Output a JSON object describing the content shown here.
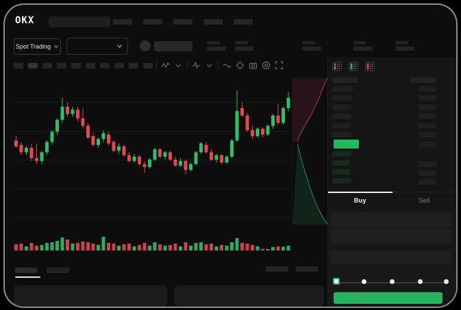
{
  "app": {
    "frame_border_color": "#8f8f8f",
    "background": "#0d0d0d"
  },
  "header": {
    "logo_text": "OKX",
    "nav_item_count": 5
  },
  "ticker": {
    "market_selector_label": "Spot Trading",
    "stat_block_lefts": [
      295,
      336,
      434,
      509,
      570
    ]
  },
  "chart_toolbar": {
    "timeframe_count": 10,
    "active_timeframe_index": 1,
    "icons": [
      "candle-style-icon",
      "chevron-down-icon",
      "separator",
      "indicators-icon",
      "chevron-down-icon",
      "separator",
      "line-tool-icon",
      "drawing-tools-icon",
      "camera-icon",
      "settings-circle-icon",
      "fullscreen-icon"
    ]
  },
  "orderbook": {
    "view_icons": [
      "orderbook-combined-icon",
      "orderbook-bids-icon",
      "orderbook-asks-icon"
    ],
    "ask_row_tops": [
      42,
      55,
      69,
      82,
      96,
      109
    ],
    "ask_left_widths": [
      30,
      28,
      28,
      28,
      26,
      28
    ],
    "bid_row_tops": [
      137,
      150,
      163,
      176
    ],
    "bid_left_widths": [
      28,
      26,
      26,
      28
    ],
    "right_row_tops": [
      42,
      55,
      69,
      82,
      96,
      109,
      123,
      152,
      165,
      178
    ],
    "ask_row_color": "#1f1f1f",
    "bid_row_color": "#162a1d",
    "last_price_color": "#1fbb5e"
  },
  "trade_panel": {
    "buy_tab_label": "Buy",
    "sell_tab_label": "Sell",
    "active_tab": "Buy",
    "input_row_tops": [
      226,
      250,
      281
    ],
    "slider_stop_count": 5,
    "slider_active_stop": 0,
    "slider_dot_lefts": [
      49,
      90,
      131,
      169
    ],
    "buy_button_color": "#28b45f"
  },
  "bottom_bar": {
    "tab_count": 2,
    "active_tab_index": 0,
    "right_block_count": 2,
    "panel_count": 2
  },
  "chart_data": {
    "type": "candlestick",
    "title": "",
    "xlabel": "",
    "ylabel": "",
    "ylim": [
      0,
      100
    ],
    "grid": true,
    "colors": {
      "up": "#2fbe6c",
      "down": "#e2494f"
    },
    "candles": [
      [
        58,
        61,
        53,
        54
      ],
      [
        55,
        57,
        48,
        50
      ],
      [
        50,
        54,
        48,
        53
      ],
      [
        53,
        56,
        44,
        46
      ],
      [
        46,
        56,
        42,
        44
      ],
      [
        44,
        51,
        42,
        50
      ],
      [
        50,
        58,
        48,
        57
      ],
      [
        57,
        65,
        55,
        64
      ],
      [
        64,
        73,
        62,
        72
      ],
      [
        72,
        87,
        70,
        81
      ],
      [
        81,
        84,
        74,
        76
      ],
      [
        76,
        81,
        74,
        79
      ],
      [
        79,
        81,
        71,
        73
      ],
      [
        73,
        80,
        66,
        68
      ],
      [
        68,
        70,
        59,
        60
      ],
      [
        61,
        63,
        54,
        55
      ],
      [
        55,
        60,
        53,
        59
      ],
      [
        59,
        65,
        57,
        63
      ],
      [
        62,
        64,
        55,
        56
      ],
      [
        57,
        58,
        50,
        51
      ],
      [
        51,
        56,
        49,
        54
      ],
      [
        54,
        55,
        47,
        48
      ],
      [
        48,
        50,
        43,
        44
      ],
      [
        44,
        49,
        43,
        47
      ],
      [
        47,
        48,
        41,
        42
      ],
      [
        42,
        44,
        36,
        40
      ],
      [
        40,
        46,
        39,
        45
      ],
      [
        45,
        53,
        44,
        52
      ],
      [
        52,
        53,
        46,
        47
      ],
      [
        47,
        51,
        45,
        50
      ],
      [
        50,
        51,
        44,
        45
      ],
      [
        45,
        47,
        40,
        41
      ],
      [
        41,
        46,
        40,
        44
      ],
      [
        44,
        45,
        35,
        38
      ],
      [
        38,
        43,
        37,
        42
      ],
      [
        42,
        51,
        41,
        50
      ],
      [
        50,
        57,
        49,
        56
      ],
      [
        55,
        57,
        49,
        50
      ],
      [
        50,
        52,
        44,
        45
      ],
      [
        45,
        49,
        43,
        48
      ],
      [
        48,
        49,
        42,
        43
      ],
      [
        43,
        48,
        42,
        47
      ],
      [
        47,
        59,
        46,
        58
      ],
      [
        58,
        92,
        57,
        78
      ],
      [
        80,
        84,
        74,
        75
      ],
      [
        75,
        77,
        64,
        65
      ],
      [
        65,
        68,
        59,
        61
      ],
      [
        61,
        67,
        60,
        66
      ],
      [
        66,
        67,
        60,
        62
      ],
      [
        62,
        69,
        61,
        68
      ],
      [
        68,
        76,
        66,
        75
      ],
      [
        75,
        83,
        69,
        70
      ],
      [
        70,
        81,
        69,
        80
      ],
      [
        80,
        91,
        78,
        87
      ]
    ],
    "volumes": [
      45,
      50,
      30,
      55,
      35,
      40,
      55,
      60,
      70,
      95,
      80,
      50,
      55,
      65,
      60,
      50,
      40,
      100,
      55,
      50,
      35,
      45,
      50,
      30,
      40,
      55,
      35,
      60,
      45,
      35,
      40,
      50,
      30,
      60,
      35,
      55,
      60,
      45,
      50,
      30,
      40,
      35,
      60,
      90,
      55,
      50,
      40,
      30,
      12,
      10,
      25,
      30,
      28,
      35
    ],
    "depth": {
      "ask_line_color": "#c2565e",
      "bid_line_color": "#3aa981",
      "ask_fill": "#271318",
      "bid_fill": "#10241a",
      "asks": [
        [
          1.0,
          0.0
        ],
        [
          0.92,
          0.06
        ],
        [
          0.88,
          0.12
        ],
        [
          0.82,
          0.2
        ],
        [
          0.76,
          0.3
        ],
        [
          0.66,
          0.42
        ],
        [
          0.55,
          0.55
        ],
        [
          0.42,
          0.68
        ],
        [
          0.3,
          0.8
        ],
        [
          0.2,
          0.9
        ],
        [
          0.14,
          1.0
        ]
      ],
      "bids": [
        [
          0.14,
          0.0
        ],
        [
          0.18,
          0.08
        ],
        [
          0.24,
          0.18
        ],
        [
          0.32,
          0.3
        ],
        [
          0.42,
          0.44
        ],
        [
          0.52,
          0.58
        ],
        [
          0.62,
          0.7
        ],
        [
          0.74,
          0.82
        ],
        [
          0.86,
          0.92
        ],
        [
          1.0,
          1.0
        ]
      ]
    }
  }
}
